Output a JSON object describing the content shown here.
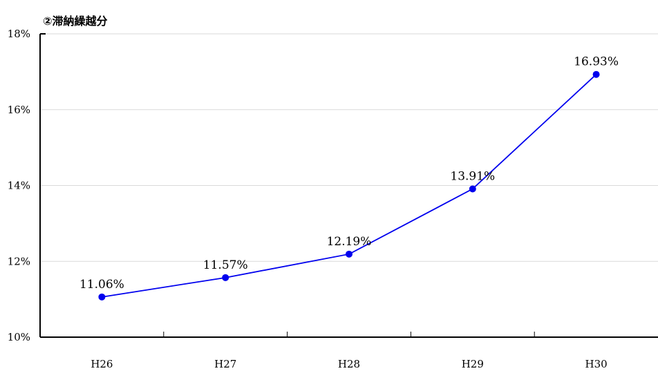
{
  "chart_data": {
    "type": "line",
    "title": "②滞納繰越分",
    "xlabel": "",
    "ylabel": "",
    "categories": [
      "H26",
      "H27",
      "H28",
      "H29",
      "H30"
    ],
    "series": [
      {
        "values": [
          11.06,
          11.57,
          12.19,
          13.91,
          16.93
        ]
      }
    ],
    "data_labels": [
      "11.06%",
      "11.57%",
      "12.19%",
      "13.91%",
      "16.93%"
    ],
    "y_ticks": [
      10,
      12,
      14,
      16,
      18
    ],
    "y_tick_labels": [
      "10%",
      "12%",
      "14%",
      "16%",
      "18%"
    ],
    "ylim": [
      10,
      18
    ],
    "grid": true,
    "legend": "none",
    "colors": {
      "line": "#0000ee",
      "marker": "#0000ee",
      "grid": "#d9d9d9",
      "axis": "#000000"
    }
  }
}
